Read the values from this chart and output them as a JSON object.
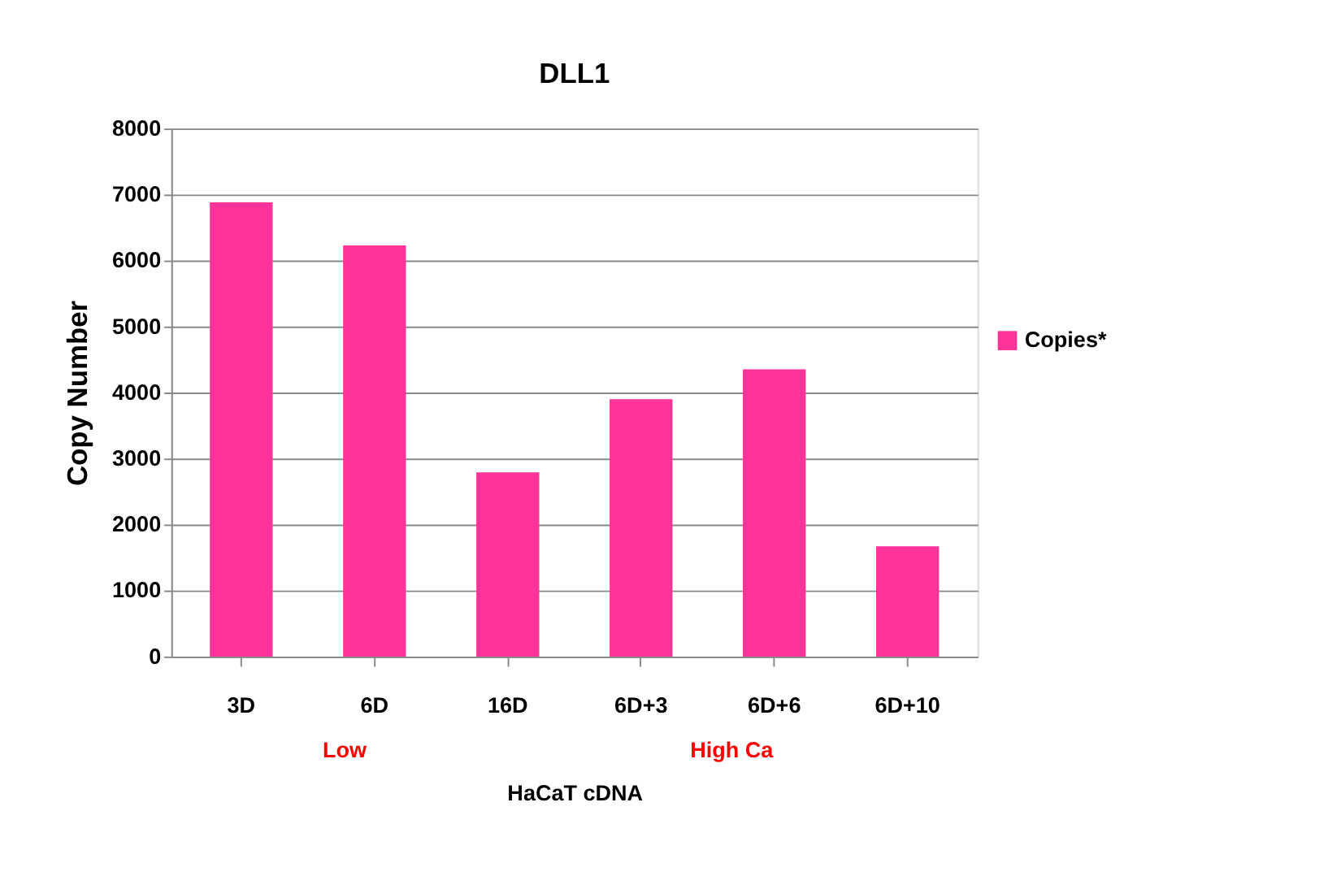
{
  "chart_data": {
    "type": "bar",
    "title": "DLL1",
    "xlabel": "HaCaT cDNA",
    "ylabel": "Copy Number",
    "categories": [
      "3D",
      "6D",
      "16D",
      "6D+3",
      "6D+6",
      "6D+10"
    ],
    "series": [
      {
        "name": "Copies*",
        "color": "#ff3399",
        "values": [
          6880,
          6230,
          2790,
          3900,
          4350,
          1670
        ]
      }
    ],
    "ylim": [
      0,
      8000
    ],
    "yticks": [
      0,
      1000,
      2000,
      3000,
      4000,
      5000,
      6000,
      7000,
      8000
    ],
    "grid": "y",
    "legend": "right",
    "annotations": [
      "Low",
      "High Ca"
    ]
  }
}
